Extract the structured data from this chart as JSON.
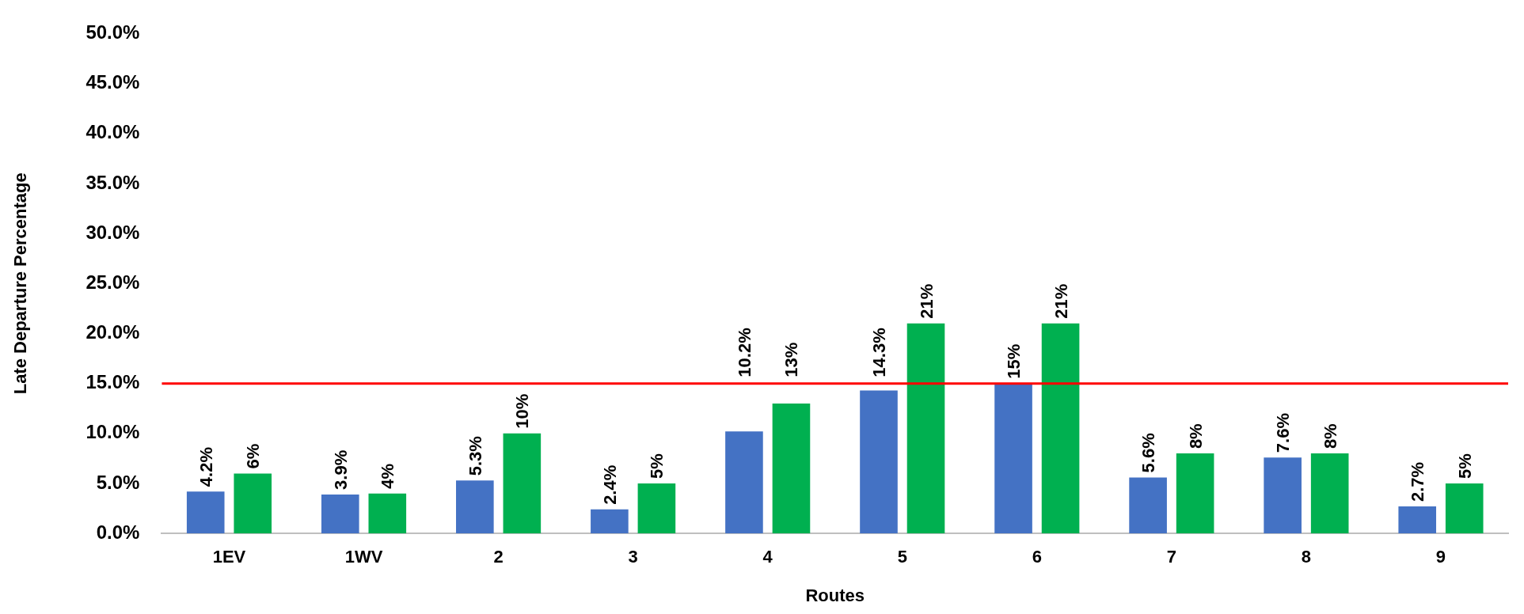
{
  "chart_data": {
    "type": "bar",
    "xlabel": "Routes",
    "ylabel": "Late Departure Percentage",
    "categories": [
      "1EV",
      "1WV",
      "2",
      "3",
      "4",
      "5",
      "6",
      "7",
      "8",
      "9"
    ],
    "series": [
      {
        "color": "#4472c4",
        "values": [
          4.2,
          3.9,
          5.3,
          2.4,
          10.2,
          14.3,
          15,
          5.6,
          7.6,
          2.7
        ],
        "value_labels": [
          "4.2%",
          "3.9%",
          "5.3%",
          "2.4%",
          "10.2%",
          "14.3%",
          "15%",
          "5.6%",
          "7.6%",
          "2.7%"
        ]
      },
      {
        "color": "#00b050",
        "values": [
          6,
          4,
          10,
          5,
          13,
          21,
          21,
          8,
          8,
          5
        ],
        "value_labels": [
          "6%",
          "4%",
          "10%",
          "5%",
          "13%",
          "21%",
          "21%",
          "8%",
          "8%",
          "5%"
        ]
      }
    ],
    "ylim": [
      0,
      50
    ],
    "yticks": [
      {
        "value": 0,
        "label": "0.0%"
      },
      {
        "value": 5,
        "label": "5.0%"
      },
      {
        "value": 10,
        "label": "10.0%"
      },
      {
        "value": 15,
        "label": "15.0%"
      },
      {
        "value": 20,
        "label": "20.0%"
      },
      {
        "value": 25,
        "label": "25.0%"
      },
      {
        "value": 30,
        "label": "30.0%"
      },
      {
        "value": 35,
        "label": "35.0%"
      },
      {
        "value": 40,
        "label": "40.0%"
      },
      {
        "value": 45,
        "label": "45.0%"
      },
      {
        "value": 50,
        "label": "50.0%"
      }
    ],
    "ref_lines": [
      {
        "axis": "y",
        "value": 15,
        "color": "#ff0000"
      }
    ],
    "grid": false,
    "legend": false
  }
}
